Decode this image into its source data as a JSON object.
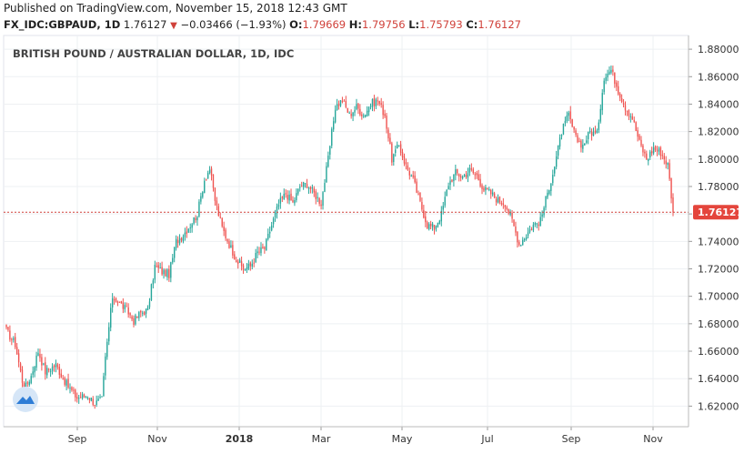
{
  "header": {
    "published": "Published on TradingView.com, November 15, 2018 12:43 GMT",
    "symbol": "FX_IDC:GBPAUD, 1D",
    "last": "1.76127",
    "change": "−0.03466 (−1.93%)",
    "open_label": "O:",
    "open": "1.79669",
    "high_label": "H:",
    "high": "1.79756",
    "low_label": "L:",
    "low": "1.75793",
    "close_label": "C:",
    "close": "1.76127"
  },
  "chart_data": {
    "type": "candlestick",
    "title": "BRITISH POUND / AUSTRALIAN DOLLAR, 1D, IDC",
    "x_tick_labels": [
      "Sep",
      "Nov",
      "2018",
      "Mar",
      "May",
      "Jul",
      "Sep",
      "Nov"
    ],
    "y_tick_labels": [
      "1.62000",
      "1.64000",
      "1.66000",
      "1.68000",
      "1.70000",
      "1.72000",
      "1.74000",
      "1.76000",
      "1.78000",
      "1.80000",
      "1.82000",
      "1.84000",
      "1.86000",
      "1.88000"
    ],
    "ylim": [
      1.605,
      1.89
    ],
    "last_price": 1.76127,
    "last_price_label": "1.76127",
    "grid": true,
    "up_color": "#26a69a",
    "down_color": "#ef5350",
    "close_path": [
      [
        0,
        1.675
      ],
      [
        5,
        1.665
      ],
      [
        10,
        1.632
      ],
      [
        14,
        1.642
      ],
      [
        18,
        1.66
      ],
      [
        22,
        1.645
      ],
      [
        28,
        1.65
      ],
      [
        34,
        1.636
      ],
      [
        40,
        1.626
      ],
      [
        46,
        1.628
      ],
      [
        50,
        1.622
      ],
      [
        54,
        1.625
      ],
      [
        56,
        1.655
      ],
      [
        60,
        1.7
      ],
      [
        64,
        1.695
      ],
      [
        68,
        1.69
      ],
      [
        72,
        1.682
      ],
      [
        76,
        1.688
      ],
      [
        80,
        1.69
      ],
      [
        84,
        1.722
      ],
      [
        88,
        1.718
      ],
      [
        92,
        1.716
      ],
      [
        96,
        1.74
      ],
      [
        100,
        1.745
      ],
      [
        104,
        1.752
      ],
      [
        108,
        1.76
      ],
      [
        112,
        1.785
      ],
      [
        115,
        1.793
      ],
      [
        118,
        1.77
      ],
      [
        122,
        1.75
      ],
      [
        126,
        1.738
      ],
      [
        130,
        1.727
      ],
      [
        134,
        1.72
      ],
      [
        138,
        1.722
      ],
      [
        142,
        1.732
      ],
      [
        146,
        1.735
      ],
      [
        150,
        1.752
      ],
      [
        154,
        1.767
      ],
      [
        158,
        1.775
      ],
      [
        162,
        1.768
      ],
      [
        166,
        1.78
      ],
      [
        170,
        1.782
      ],
      [
        174,
        1.775
      ],
      [
        178,
        1.768
      ],
      [
        182,
        1.8
      ],
      [
        186,
        1.838
      ],
      [
        190,
        1.843
      ],
      [
        194,
        1.832
      ],
      [
        198,
        1.838
      ],
      [
        202,
        1.832
      ],
      [
        206,
        1.84
      ],
      [
        210,
        1.843
      ],
      [
        214,
        1.832
      ],
      [
        218,
        1.8
      ],
      [
        222,
        1.81
      ],
      [
        226,
        1.795
      ],
      [
        230,
        1.785
      ],
      [
        234,
        1.768
      ],
      [
        238,
        1.752
      ],
      [
        242,
        1.75
      ],
      [
        246,
        1.76
      ],
      [
        250,
        1.782
      ],
      [
        254,
        1.79
      ],
      [
        258,
        1.787
      ],
      [
        262,
        1.792
      ],
      [
        266,
        1.788
      ],
      [
        270,
        1.778
      ],
      [
        274,
        1.775
      ],
      [
        278,
        1.77
      ],
      [
        282,
        1.768
      ],
      [
        286,
        1.755
      ],
      [
        290,
        1.738
      ],
      [
        294,
        1.745
      ],
      [
        298,
        1.752
      ],
      [
        302,
        1.755
      ],
      [
        306,
        1.775
      ],
      [
        310,
        1.795
      ],
      [
        314,
        1.82
      ],
      [
        318,
        1.832
      ],
      [
        322,
        1.815
      ],
      [
        326,
        1.81
      ],
      [
        330,
        1.82
      ],
      [
        334,
        1.818
      ],
      [
        338,
        1.86
      ],
      [
        342,
        1.865
      ],
      [
        346,
        1.85
      ],
      [
        350,
        1.838
      ],
      [
        354,
        1.83
      ],
      [
        358,
        1.812
      ],
      [
        362,
        1.8
      ],
      [
        366,
        1.808
      ],
      [
        370,
        1.805
      ],
      [
        374,
        1.796
      ],
      [
        377,
        1.762
      ]
    ]
  }
}
